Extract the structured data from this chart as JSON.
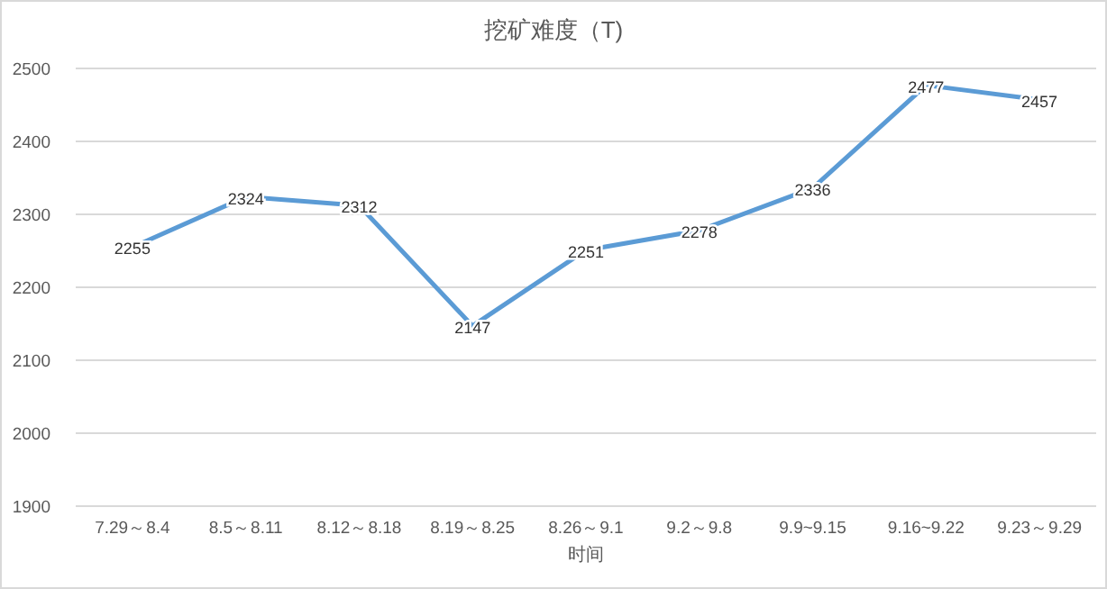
{
  "chart_data": {
    "type": "line",
    "title": "挖矿难度（T)",
    "xlabel": "时间",
    "categories": [
      "7.29～8.4",
      "8.5～8.11",
      "8.12～8.18",
      "8.19～8.25",
      "8.26～9.1",
      "9.2～9.8",
      "9.9~9.15",
      "9.16~9.22",
      "9.23～9.29"
    ],
    "series": [
      {
        "color": "#5b9bd5",
        "values": [
          2255,
          2324,
          2312,
          2147,
          2251,
          2278,
          2336,
          2477,
          2457
        ]
      }
    ],
    "ylim": [
      1900,
      2500
    ],
    "yticks": [
      1900,
      2000,
      2100,
      2200,
      2300,
      2400,
      2500
    ],
    "grid": "y",
    "data_labels": true,
    "marker": "none",
    "line_style": "solid"
  }
}
